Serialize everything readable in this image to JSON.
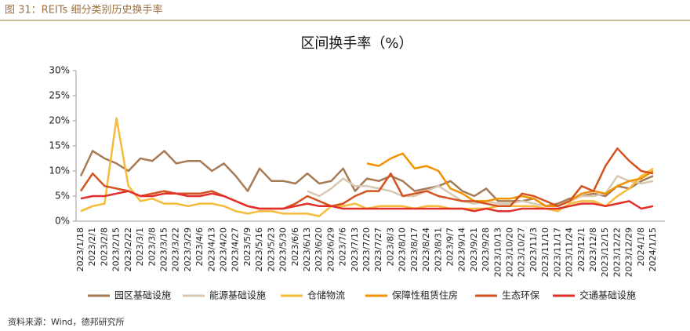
{
  "header": "图 31：REITs 细分类别历史换手率",
  "source": "资料来源：Wind，德邦研究所",
  "chart_data": {
    "type": "line",
    "title": "区间换手率（%）",
    "categories": [
      "2023/1/18",
      "2023/2/1",
      "2023/2/8",
      "2023/2/15",
      "2023/2/22",
      "2023/3/1",
      "2023/3/8",
      "2023/3/15",
      "2023/3/22",
      "2023/3/29",
      "2023/4/6",
      "2023/4/13",
      "2023/4/20",
      "2023/4/27",
      "2023/5/9",
      "2023/5/16",
      "2023/5/23",
      "2023/5/30",
      "2023/6/6",
      "2023/6/13",
      "2023/6/20",
      "2023/6/29",
      "2023/7/6",
      "2023/7/13",
      "2023/7/20",
      "2023/7/27",
      "2023/8/3",
      "2023/8/10",
      "2023/8/17",
      "2023/8/24",
      "2023/8/31",
      "2023/9/7",
      "2023/9/14",
      "2023/9/21",
      "2023/9/28",
      "2023/10/13",
      "2023/10/20",
      "2023/10/27",
      "2023/11/3",
      "2023/11/10",
      "2023/11/17",
      "2023/11/24",
      "2023/12/1",
      "2023/12/8",
      "2023/12/15",
      "2023/12/22",
      "2023/12/29",
      "2024/1/8",
      "2024/1/15"
    ],
    "series": [
      {
        "name": "园区基础设施",
        "color": "#a57a55",
        "values": [
          9,
          14,
          12.5,
          11.5,
          10,
          12.5,
          12,
          14,
          11.5,
          12,
          12,
          10,
          11.5,
          9,
          6,
          10.5,
          8,
          8,
          7.5,
          9.5,
          7.5,
          8,
          10.5,
          6,
          8.5,
          8,
          9,
          8,
          6,
          6.5,
          7,
          8,
          6,
          5,
          6.5,
          4,
          4,
          4,
          4.5,
          3,
          3.5,
          4.5,
          5,
          5.5,
          5,
          7,
          6.5,
          8,
          9
        ]
      },
      {
        "name": "能源基础设施",
        "color": "#d8c8b2",
        "values": [
          null,
          null,
          null,
          null,
          null,
          null,
          null,
          null,
          null,
          null,
          null,
          null,
          null,
          null,
          null,
          null,
          null,
          null,
          null,
          6,
          5,
          6.5,
          8.5,
          7,
          7,
          6.5,
          6,
          5,
          5,
          6,
          7,
          5.5,
          4,
          3.5,
          4,
          3.5,
          3.5,
          4,
          3.5,
          3,
          3,
          4,
          5,
          5,
          5.5,
          9,
          8,
          7.5,
          8
        ]
      },
      {
        "name": "仓储物流",
        "color": "#f6bb3a",
        "values": [
          2,
          3,
          3.5,
          20.5,
          7,
          4,
          4.5,
          3.5,
          3.5,
          3,
          3.5,
          3.5,
          3,
          2,
          1.5,
          2,
          2,
          1.5,
          1.5,
          1.5,
          1,
          3,
          3,
          3.5,
          2.5,
          3,
          3,
          3,
          2.5,
          3,
          3,
          2.5,
          2.5,
          2.5,
          2.5,
          3,
          3,
          3,
          3,
          2.5,
          2,
          3.5,
          4,
          4,
          3,
          5,
          6.5,
          9,
          10.5
        ]
      },
      {
        "name": "保障性租赁住房",
        "color": "#f39200",
        "values": [
          null,
          null,
          null,
          null,
          null,
          null,
          null,
          null,
          null,
          null,
          null,
          null,
          null,
          null,
          null,
          null,
          null,
          null,
          null,
          null,
          null,
          null,
          null,
          null,
          11.5,
          11,
          12.5,
          13.5,
          10.5,
          11,
          10,
          6.5,
          5.5,
          4,
          4,
          4.5,
          4.5,
          5,
          4.5,
          3,
          3,
          4,
          5.5,
          6,
          5.5,
          7,
          8,
          8.5,
          10
        ]
      },
      {
        "name": "生态环保",
        "color": "#d4521e",
        "values": [
          6,
          9.5,
          7,
          6.5,
          6,
          5,
          5.5,
          6,
          5.5,
          5.5,
          5.5,
          6,
          5,
          4,
          3,
          2.5,
          2.5,
          2.5,
          3.5,
          5,
          4,
          3,
          3.5,
          5,
          6,
          6,
          9.5,
          5,
          5.5,
          6,
          5,
          4.5,
          4,
          4,
          3.5,
          3,
          3,
          5.5,
          5,
          4,
          3,
          4,
          7,
          6,
          11,
          14.5,
          12,
          10,
          9.5
        ]
      },
      {
        "name": "交通基础设施",
        "color": "#e1302a",
        "values": [
          4.5,
          5,
          5,
          5.5,
          6,
          5,
          5,
          5.5,
          5.5,
          5,
          5,
          5.5,
          5,
          4,
          3,
          2.5,
          2.5,
          2.5,
          3,
          3.5,
          3,
          3,
          2.5,
          2.5,
          2.5,
          2.5,
          2.5,
          2.5,
          2.5,
          2.5,
          2.5,
          2.5,
          2.5,
          2,
          2.5,
          2,
          2,
          2.5,
          2.5,
          2.5,
          2.5,
          3,
          3.5,
          3.5,
          3,
          3.5,
          4,
          2.5,
          3
        ]
      }
    ],
    "ylim": [
      0,
      30
    ],
    "yticks": [
      {
        "value": 0,
        "label": "0%"
      },
      {
        "value": 5,
        "label": "5%"
      },
      {
        "value": 10,
        "label": "10%"
      },
      {
        "value": 15,
        "label": "15%"
      },
      {
        "value": 20,
        "label": "20%"
      },
      {
        "value": 25,
        "label": "25%"
      },
      {
        "value": 30,
        "label": "30%"
      }
    ],
    "grid": false,
    "legend": "bottom"
  }
}
